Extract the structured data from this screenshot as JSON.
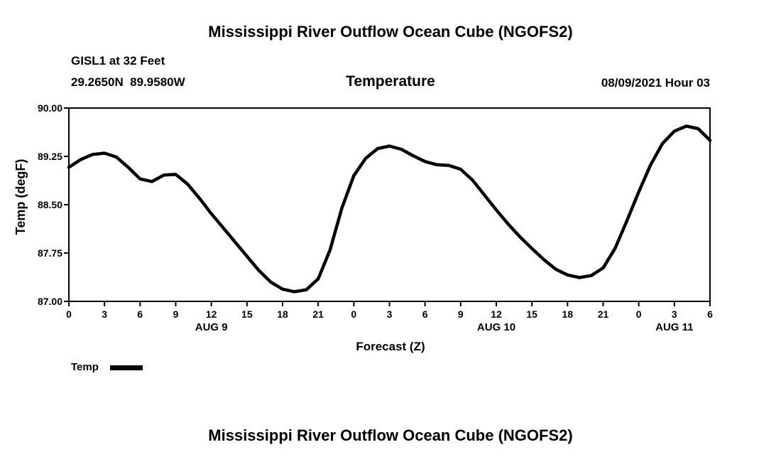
{
  "page": {
    "top_title": "Mississippi River Outflow Ocean Cube (NGOFS2)",
    "bottom_title": "Mississippi River Outflow Ocean Cube (NGOFS2)"
  },
  "header": {
    "station": "GISL1 at 32 Feet",
    "coordinates": "29.2650N  89.9580W",
    "chart_title": "Temperature",
    "datetime": "08/09/2021 Hour 03"
  },
  "legend": {
    "label": "Temp",
    "line_color": "#000000"
  },
  "chart_data": {
    "type": "line",
    "title": "Temperature",
    "xlabel": "Forecast (Z)",
    "ylabel": "Temp (degF)",
    "x_start_hour": 0,
    "x_end_hour": 54,
    "x_tick_interval_hours": 3,
    "x_tick_labels": [
      "0",
      "3",
      "6",
      "9",
      "12",
      "15",
      "18",
      "21",
      "0",
      "3",
      "6",
      "9",
      "12",
      "15",
      "18",
      "21",
      "0",
      "3",
      "6"
    ],
    "date_labels": [
      {
        "label": "AUG 9",
        "hour": 12
      },
      {
        "label": "AUG 10",
        "hour": 36
      },
      {
        "label": "AUG 11",
        "hour": 51
      }
    ],
    "ylim": [
      87.0,
      90.0
    ],
    "y_ticks": [
      87.0,
      87.75,
      88.5,
      89.25,
      90.0
    ],
    "y_tick_labels": [
      "87.00",
      "87.75",
      "88.50",
      "89.25",
      "90.00"
    ],
    "grid": false,
    "legend_position": "bottom-left",
    "line_color": "#000000",
    "series": [
      {
        "name": "Temp",
        "x_hours": [
          0,
          1,
          2,
          3,
          4,
          5,
          6,
          7,
          8,
          9,
          10,
          11,
          12,
          13,
          14,
          15,
          16,
          17,
          18,
          19,
          20,
          21,
          22,
          23,
          24,
          25,
          26,
          27,
          28,
          29,
          30,
          31,
          32,
          33,
          34,
          35,
          36,
          37,
          38,
          39,
          40,
          41,
          42,
          43,
          44,
          45,
          46,
          47,
          48,
          49,
          50,
          51,
          52,
          53,
          54
        ],
        "values": [
          89.08,
          89.2,
          89.28,
          89.3,
          89.24,
          89.08,
          88.9,
          88.86,
          88.96,
          88.97,
          88.82,
          88.6,
          88.36,
          88.14,
          87.92,
          87.7,
          87.48,
          87.3,
          87.19,
          87.15,
          87.18,
          87.35,
          87.8,
          88.45,
          88.95,
          89.22,
          89.37,
          89.41,
          89.36,
          89.26,
          89.17,
          89.12,
          89.11,
          89.05,
          88.88,
          88.65,
          88.42,
          88.2,
          88.0,
          87.82,
          87.65,
          87.5,
          87.41,
          87.37,
          87.4,
          87.52,
          87.82,
          88.25,
          88.7,
          89.12,
          89.45,
          89.64,
          89.72,
          89.68,
          89.5
        ]
      }
    ]
  }
}
